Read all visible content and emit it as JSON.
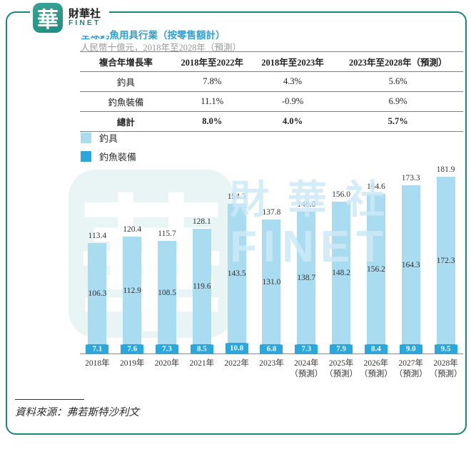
{
  "brand": {
    "logo_char": "華",
    "name": "財華社",
    "name_en": "FINET"
  },
  "chart_header": {
    "title": "全球釣魚用具行業（按零售額計）",
    "subtitle": "人民幣十億元，2018年至2028年（預測）"
  },
  "cagr_table": {
    "headers": [
      "複合年增長率",
      "2018年至2022年",
      "2018年至2023年",
      "2023年至2028年（預測）"
    ],
    "rows": [
      {
        "label": "釣具",
        "values": [
          "7.8%",
          "4.3%",
          "5.6%"
        ]
      },
      {
        "label": "釣魚裝備",
        "values": [
          "11.1%",
          "-0.9%",
          "6.9%"
        ]
      },
      {
        "label": "總計",
        "values": [
          "8.0%",
          "4.0%",
          "5.7%"
        ]
      }
    ]
  },
  "legend": [
    {
      "label": "釣具",
      "color": "#a9dcf0"
    },
    {
      "label": "釣魚裝備",
      "color": "#2aa7dd"
    }
  ],
  "chart_data": {
    "type": "bar",
    "stacked": true,
    "title": "全球釣魚用具行業（按零售額計）",
    "ylabel": "人民幣十億元",
    "ylim": [
      0,
      182
    ],
    "grid": false,
    "legend_position": "top-left",
    "categories": [
      {
        "year": "2018年",
        "note": ""
      },
      {
        "year": "2019年",
        "note": ""
      },
      {
        "year": "2020年",
        "note": ""
      },
      {
        "year": "2021年",
        "note": ""
      },
      {
        "year": "2022年",
        "note": ""
      },
      {
        "year": "2023年",
        "note": ""
      },
      {
        "year": "2024年",
        "note": "（預測）"
      },
      {
        "year": "2025年",
        "note": "（預測）"
      },
      {
        "year": "2026年",
        "note": "（預測）"
      },
      {
        "year": "2027年",
        "note": "（預測）"
      },
      {
        "year": "2028年",
        "note": "（預測）"
      }
    ],
    "series": [
      {
        "name": "釣具",
        "color": "#a9dcf0",
        "values": [
          106.3,
          112.9,
          108.5,
          119.6,
          143.5,
          131.0,
          138.7,
          148.2,
          156.2,
          164.3,
          172.3
        ],
        "labels": [
          "106.3",
          "112.9",
          "108.5",
          "119.6",
          "143.5",
          "131.0",
          "138.7",
          "148.2",
          "156.2",
          "164.3",
          "172.3"
        ]
      },
      {
        "name": "釣魚裝備",
        "color": "#2aa7dd",
        "values": [
          7.1,
          7.6,
          7.3,
          8.5,
          10.8,
          6.8,
          7.3,
          7.9,
          8.4,
          9.0,
          9.5
        ],
        "labels": [
          "7.1",
          "7.6",
          "7.3",
          "8.5",
          "10.8",
          "6.8",
          "7.3",
          "7.9",
          "8.4",
          "9.0",
          "9.5"
        ]
      }
    ],
    "totals": [
      113.4,
      120.4,
      115.7,
      128.1,
      154.3,
      137.8,
      146.0,
      156.0,
      164.6,
      173.3,
      181.9
    ],
    "total_labels": [
      "113.4",
      "120.4",
      "115.7",
      "128.1",
      "154.3",
      "137.8",
      "146.0",
      "156.0",
      "164.6",
      "173.3",
      "181.9"
    ]
  },
  "watermark": {
    "left_glyph": "華",
    "right_line1": "財華社",
    "right_line2": "FINET"
  },
  "source": {
    "text": "資料來源：弗若斯特沙利文"
  }
}
